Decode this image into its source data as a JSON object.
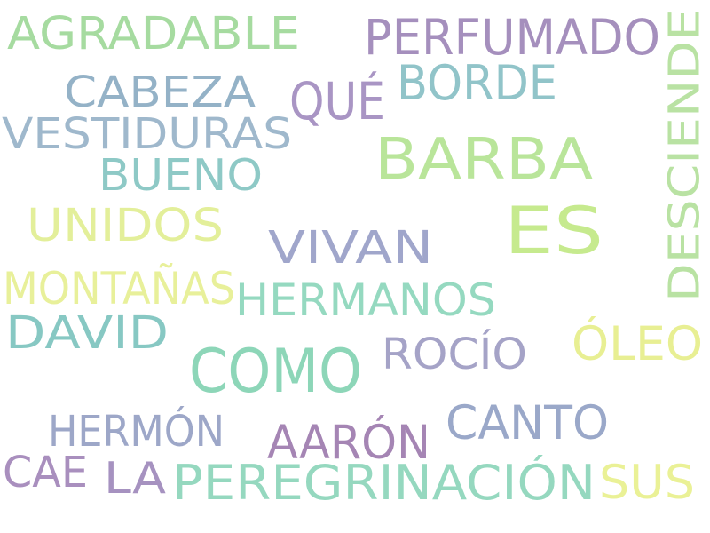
{
  "words": [
    {
      "id": "agradable",
      "text": "AGRADABLE",
      "color": "#a6dba0"
    },
    {
      "id": "perfumado",
      "text": "PERFUMADO",
      "color": "#a58fbd"
    },
    {
      "id": "desciende",
      "text": "DESCIENDE",
      "color": "#b9e2a3"
    },
    {
      "id": "cabeza",
      "text": "CABEZA",
      "color": "#94b2c7"
    },
    {
      "id": "que",
      "text": "QUÉ",
      "color": "#a995c4"
    },
    {
      "id": "borde",
      "text": "BORDE",
      "color": "#91c4c9"
    },
    {
      "id": "vestiduras",
      "text": "VESTIDURAS",
      "color": "#9fb8cc"
    },
    {
      "id": "barba",
      "text": "BARBA",
      "color": "#b9e59a"
    },
    {
      "id": "bueno",
      "text": "BUENO",
      "color": "#8ec9c6"
    },
    {
      "id": "es",
      "text": "ES",
      "color": "#c6ea8e"
    },
    {
      "id": "unidos",
      "text": "UNIDOS",
      "color": "#e3ef9a"
    },
    {
      "id": "vivan",
      "text": "VIVAN",
      "color": "#a0a6cb"
    },
    {
      "id": "montanas",
      "text": "MONTAÑAS",
      "color": "#e8f09a"
    },
    {
      "id": "hermanos",
      "text": "HERMANOS",
      "color": "#95d9c0"
    },
    {
      "id": "david",
      "text": "DAVID",
      "color": "#87c8c3"
    },
    {
      "id": "oleo",
      "text": "ÓLEO",
      "color": "#e8ef93"
    },
    {
      "id": "como",
      "text": "COMO",
      "color": "#8dd6b8"
    },
    {
      "id": "rocio",
      "text": "ROCÍO",
      "color": "#a5a3c7"
    },
    {
      "id": "hermon",
      "text": "HERMÓN",
      "color": "#9da7c8"
    },
    {
      "id": "canto",
      "text": "CANTO",
      "color": "#9aa8c9"
    },
    {
      "id": "aaron",
      "text": "AARÓN",
      "color": "#a585b4"
    },
    {
      "id": "cae",
      "text": "CAE",
      "color": "#a98fbe"
    },
    {
      "id": "la",
      "text": "LA",
      "color": "#a692c0"
    },
    {
      "id": "peregrinacion",
      "text": "PEREGRINACIÓN",
      "color": "#95d8bf"
    },
    {
      "id": "sus",
      "text": "SUS",
      "color": "#eaf196"
    }
  ]
}
